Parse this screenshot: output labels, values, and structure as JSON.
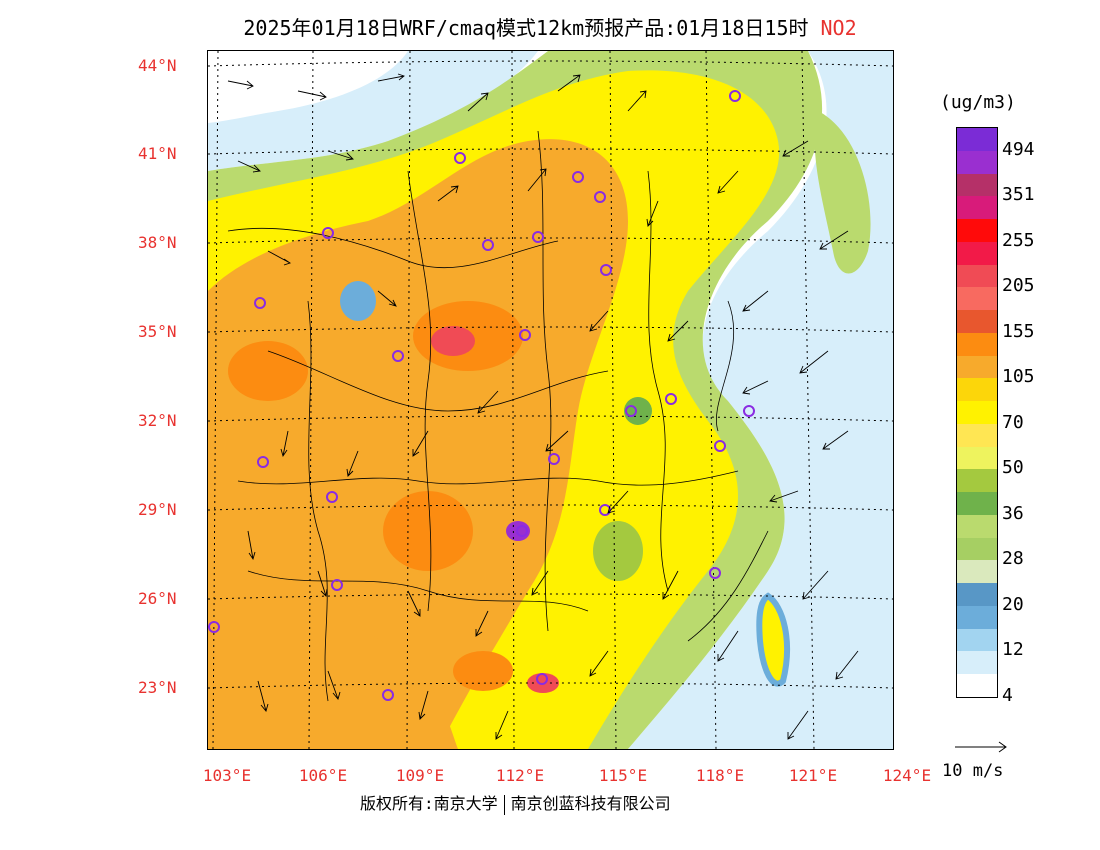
{
  "header": {
    "title": "2025年01月18日WRF/cmaq模式12km预报产品:01月18日15时",
    "species": "NO2"
  },
  "map": {
    "lat_labels": [
      "44°N",
      "41°N",
      "38°N",
      "35°N",
      "32°N",
      "29°N",
      "26°N",
      "23°N"
    ],
    "lon_labels": [
      "103°E",
      "106°E",
      "109°E",
      "112°E",
      "115°E",
      "118°E",
      "121°E",
      "124°E"
    ],
    "colors": {
      "background": "#ffffff",
      "axis_label": "#e8322f",
      "station_marker": "#8a2be2"
    }
  },
  "legend": {
    "unit": "(ug/m3)",
    "labels": [
      "494",
      "351",
      "255",
      "205",
      "155",
      "105",
      "70",
      "50",
      "36",
      "28",
      "20",
      "12",
      "4"
    ],
    "colors": [
      "#7b2cd6",
      "#9a2fd0",
      "#b53068",
      "#d81b7a",
      "#ff0a0a",
      "#f21a48",
      "#f04b55",
      "#f86a60",
      "#e8572e",
      "#fc8c11",
      "#f7aa2c",
      "#fcd60a",
      "#fff200",
      "#ffe653",
      "#eef35e",
      "#a4c93f",
      "#6fb24b",
      "#bada6e",
      "#a6cf63",
      "#dae9bd",
      "#5897c6",
      "#6cadda",
      "#a2d4f0",
      "#d7eefa",
      "#ffffff"
    ]
  },
  "vector_scale": {
    "label": "10 m/s"
  },
  "footer": {
    "copyright_left": "版权所有:南京大学",
    "copyright_right": "南京创蓝科技有限公司"
  }
}
